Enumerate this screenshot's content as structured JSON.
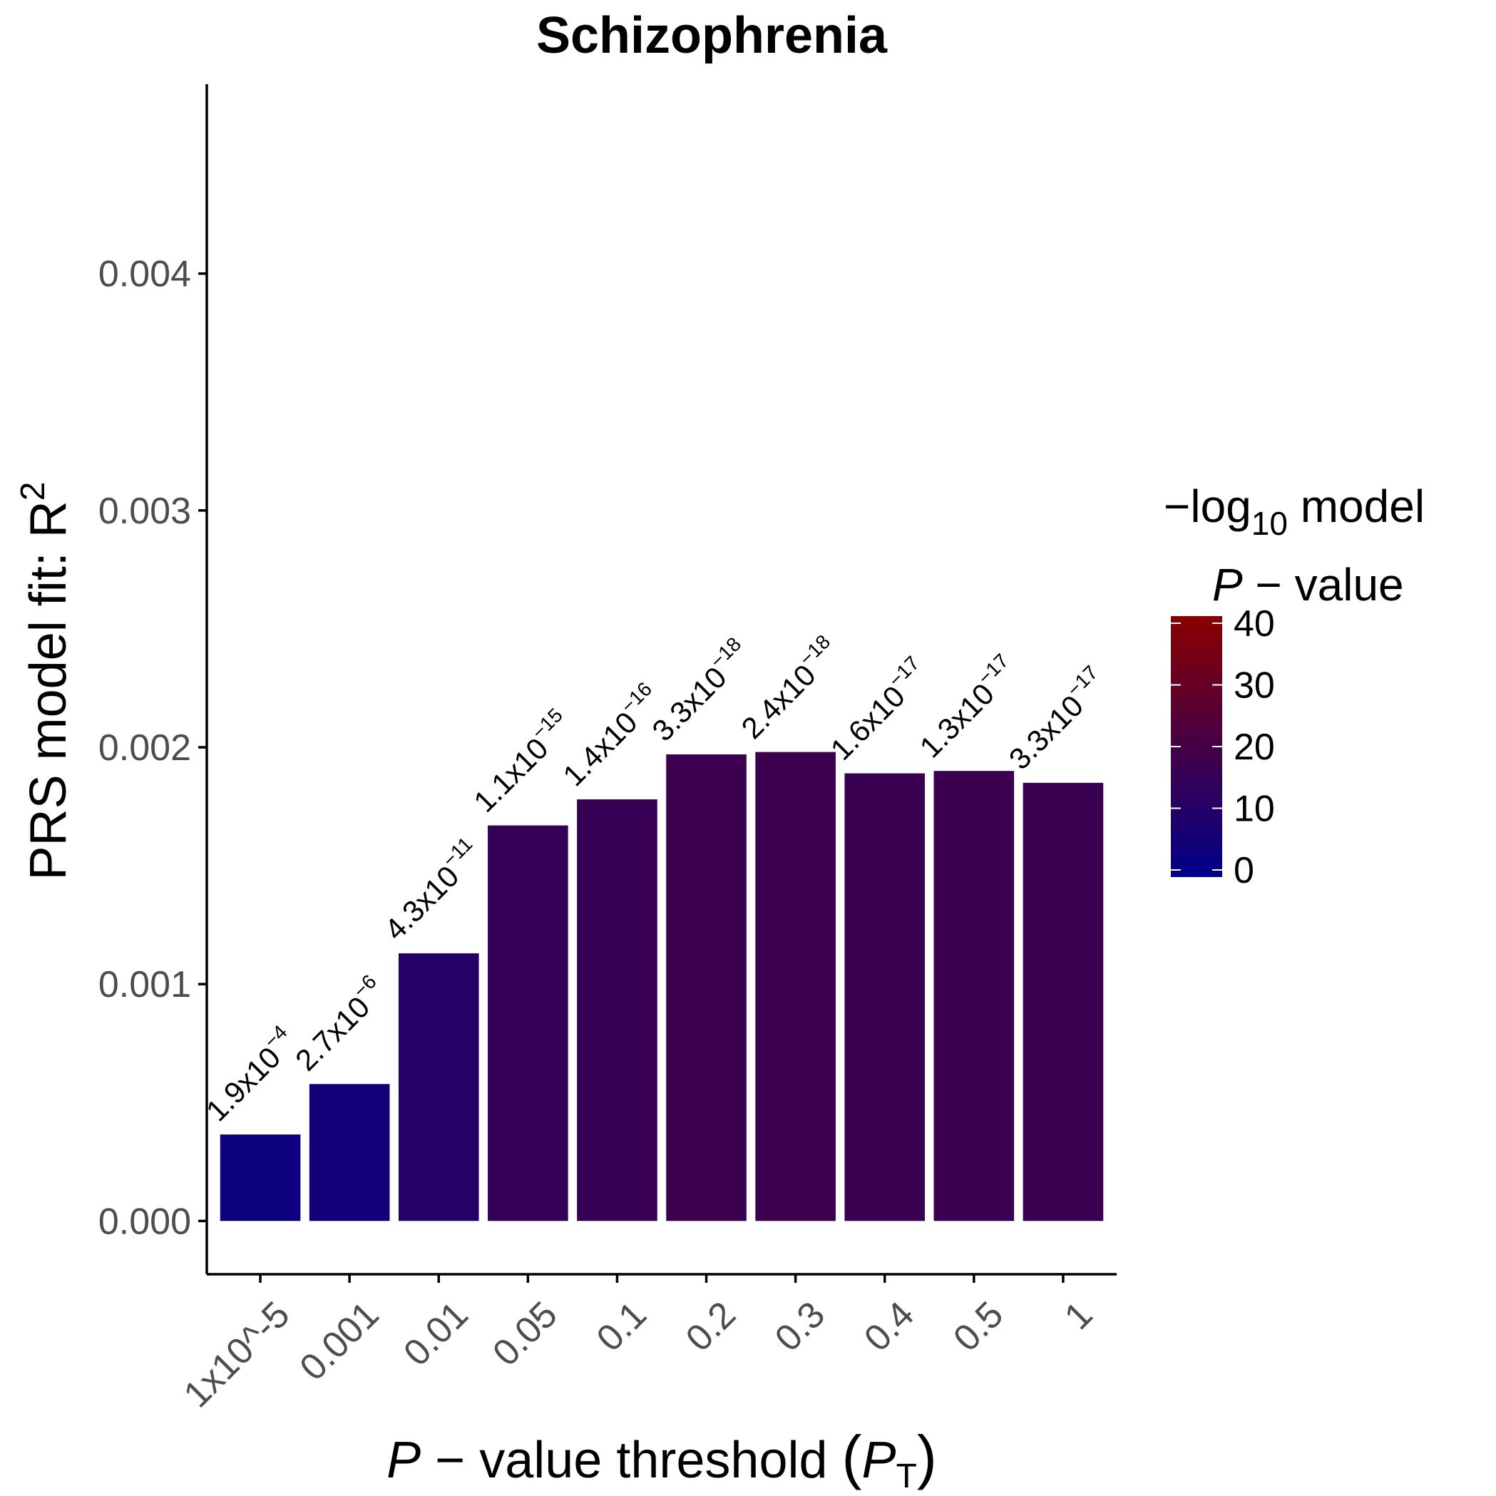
{
  "chart_data": {
    "type": "bar",
    "title": "Schizophrenia",
    "xlabel": "P − value threshold (P_T)",
    "ylabel": "PRS model fit: R^2",
    "categories": [
      "1x10^-5",
      "0.001",
      "0.01",
      "0.05",
      "0.1",
      "0.2",
      "0.3",
      "0.4",
      "0.5",
      "1"
    ],
    "values": [
      0.000365,
      0.000578,
      0.00113,
      0.00167,
      0.00178,
      0.00197,
      0.00198,
      0.00189,
      0.0019,
      0.00185
    ],
    "p_labels": [
      {
        "m": "1.9",
        "e": "−4"
      },
      {
        "m": "2.7",
        "e": "−6"
      },
      {
        "m": "4.3",
        "e": "−11"
      },
      {
        "m": "1.1",
        "e": "−15"
      },
      {
        "m": "1.4",
        "e": "−16"
      },
      {
        "m": "3.3",
        "e": "−18"
      },
      {
        "m": "2.4",
        "e": "−18"
      },
      {
        "m": "1.6",
        "e": "−17"
      },
      {
        "m": "1.3",
        "e": "−17"
      },
      {
        "m": "3.3",
        "e": "−17"
      }
    ],
    "neg_log10_p": [
      3.7,
      5.6,
      10.4,
      15.0,
      15.9,
      17.5,
      17.6,
      16.8,
      16.9,
      16.5
    ],
    "ylim": [
      -0.000225,
      0.0048
    ],
    "yticks": [
      0,
      0.001,
      0.002,
      0.003,
      0.004
    ],
    "ytick_labels": [
      "0.000",
      "0.001",
      "0.002",
      "0.003",
      "0.004"
    ],
    "grid": false,
    "legend": {
      "title_line1": "−log10 model",
      "title_line2": "P − value",
      "range": [
        0,
        40
      ],
      "ticks": [
        0,
        10,
        20,
        30,
        40
      ],
      "colors": [
        "#00008B",
        "#8B0000"
      ],
      "placement": "right"
    }
  }
}
